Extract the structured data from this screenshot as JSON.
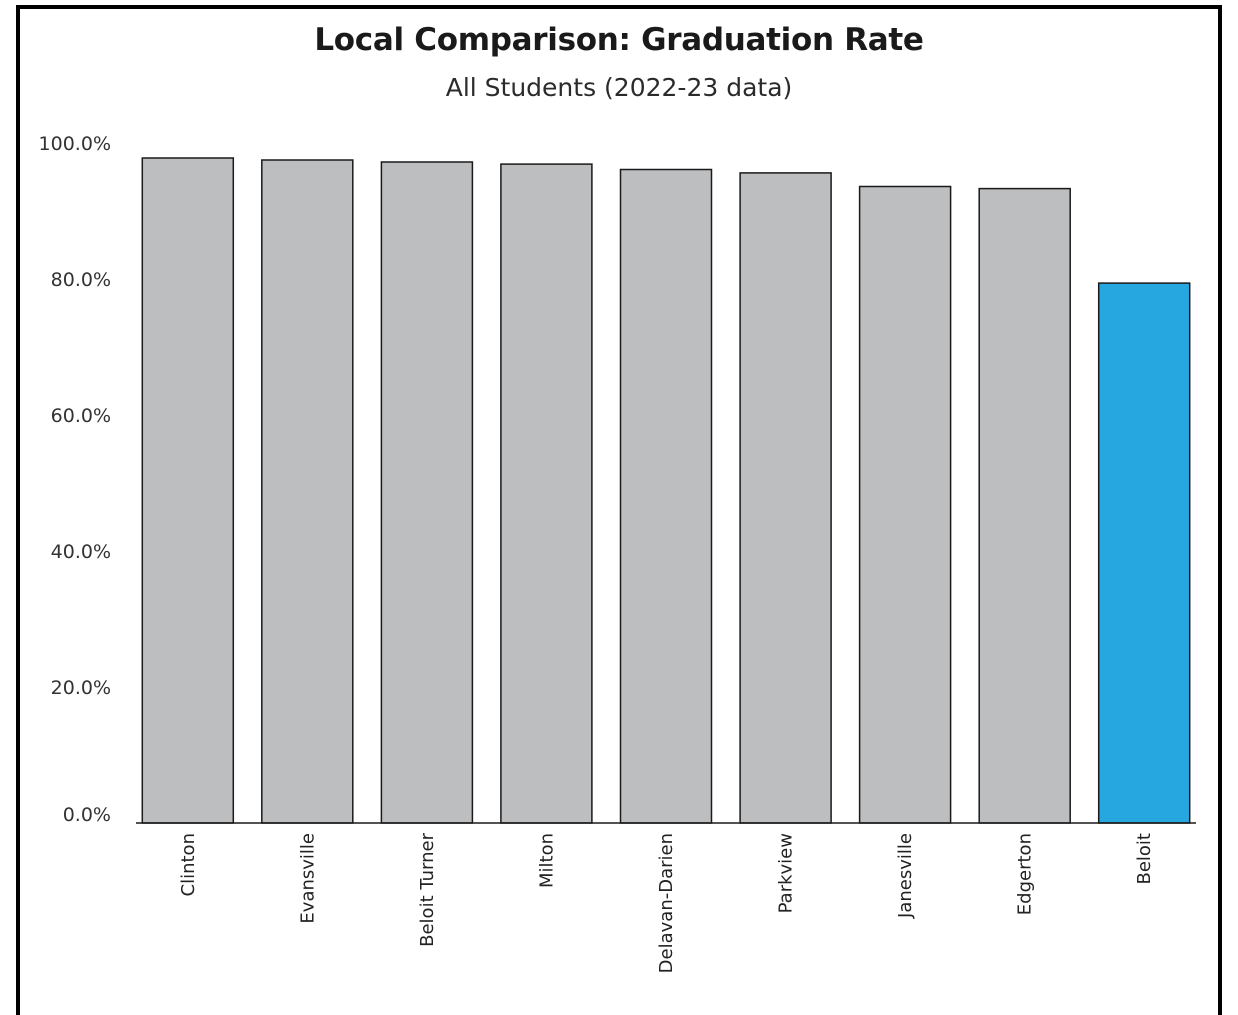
{
  "chart_data": {
    "type": "bar",
    "title": "Local Comparison: Graduation Rate",
    "subtitle": "All Students (2022-23 data)",
    "xlabel": "",
    "ylabel": "",
    "ylim": [
      0,
      100
    ],
    "yticks": [
      0,
      20,
      40,
      60,
      80,
      100
    ],
    "ytick_labels": [
      "0.0%",
      "20.0%",
      "40.0%",
      "60.0%",
      "80.0%",
      "100.0%"
    ],
    "grid": false,
    "legend": "none",
    "categories": [
      "Clinton",
      "Evansville",
      "Beloit Turner",
      "Milton",
      "Delavan-Darien",
      "Parkview",
      "Janesville",
      "Edgerton",
      "Beloit"
    ],
    "values": [
      97.8,
      97.5,
      97.2,
      96.9,
      96.1,
      95.6,
      93.6,
      93.3,
      79.4
    ],
    "colors": {
      "default_bar": "#bdbec0",
      "highlight_bar": "#27a7e0",
      "bar_outline": "#1a1a1a"
    },
    "highlight_category": "Beloit"
  }
}
